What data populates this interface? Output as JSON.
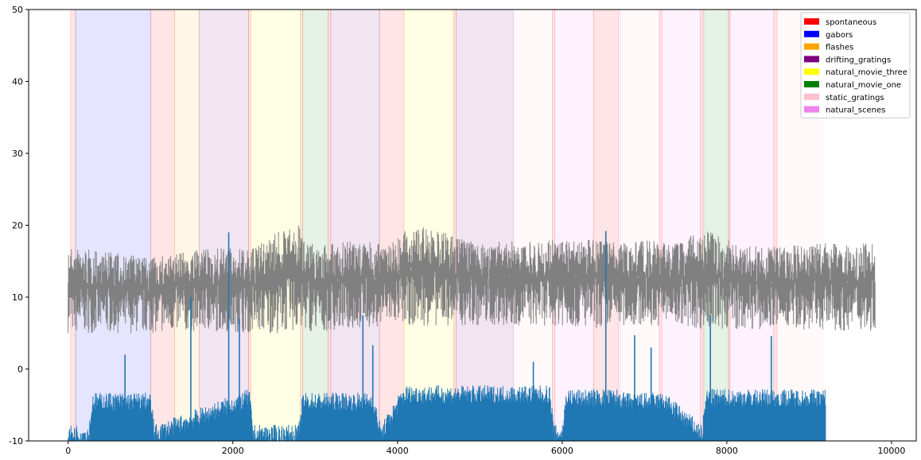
{
  "chart_data": {
    "type": "line",
    "xlim": [
      -480,
      10300
    ],
    "ylim": [
      -10,
      50
    ],
    "x_ticks": [
      0,
      2000,
      4000,
      6000,
      8000,
      10000
    ],
    "y_ticks": [
      -10,
      0,
      10,
      20,
      30,
      40,
      50
    ],
    "legend_position": "top-right",
    "legend": [
      {
        "label": "spontaneous",
        "color": "#ff0000"
      },
      {
        "label": "gabors",
        "color": "#0000ff"
      },
      {
        "label": "flashes",
        "color": "#ffa500"
      },
      {
        "label": "drifting_gratings",
        "color": "#800080"
      },
      {
        "label": "natural_movie_three",
        "color": "#ffff00"
      },
      {
        "label": "natural_movie_one",
        "color": "#008000"
      },
      {
        "label": "static_gratings",
        "color": "#ffc0cb"
      },
      {
        "label": "natural_scenes",
        "color": "#ee82ee"
      }
    ],
    "stimulus_epochs": [
      {
        "stimulus": "spontaneous",
        "start": 30,
        "end": 90
      },
      {
        "stimulus": "gabors",
        "start": 90,
        "end": 1000
      },
      {
        "stimulus": "spontaneous",
        "start": 1000,
        "end": 1295
      },
      {
        "stimulus": "flashes",
        "start": 1295,
        "end": 1590
      },
      {
        "stimulus": "drifting_gratings",
        "start": 1590,
        "end": 2190
      },
      {
        "stimulus": "spontaneous",
        "start": 2190,
        "end": 2220
      },
      {
        "stimulus": "natural_movie_three",
        "start": 2220,
        "end": 2820
      },
      {
        "stimulus": "spontaneous",
        "start": 2820,
        "end": 2850
      },
      {
        "stimulus": "natural_movie_one",
        "start": 2850,
        "end": 3160
      },
      {
        "stimulus": "spontaneous",
        "start": 3160,
        "end": 3190
      },
      {
        "stimulus": "drifting_gratings",
        "start": 3190,
        "end": 3780
      },
      {
        "stimulus": "spontaneous",
        "start": 3780,
        "end": 4080
      },
      {
        "stimulus": "natural_movie_three",
        "start": 4080,
        "end": 4680
      },
      {
        "stimulus": "spontaneous",
        "start": 4680,
        "end": 4710
      },
      {
        "stimulus": "drifting_gratings",
        "start": 4710,
        "end": 5410
      },
      {
        "stimulus": "static_gratings",
        "start": 5410,
        "end": 5880
      },
      {
        "stimulus": "spontaneous",
        "start": 5880,
        "end": 5910
      },
      {
        "stimulus": "natural_scenes",
        "start": 5910,
        "end": 6380
      },
      {
        "stimulus": "spontaneous",
        "start": 6380,
        "end": 6680
      },
      {
        "stimulus": "natural_scenes",
        "start": 6680,
        "end": 6710
      },
      {
        "stimulus": "static_gratings",
        "start": 6710,
        "end": 7180
      },
      {
        "stimulus": "spontaneous",
        "start": 7180,
        "end": 7210
      },
      {
        "stimulus": "natural_scenes",
        "start": 7210,
        "end": 7680
      },
      {
        "stimulus": "spontaneous",
        "start": 7680,
        "end": 7710
      },
      {
        "stimulus": "static_gratings",
        "start": 7710,
        "end": 7720
      },
      {
        "stimulus": "natural_movie_one",
        "start": 7720,
        "end": 8020
      },
      {
        "stimulus": "spontaneous",
        "start": 8020,
        "end": 8040
      },
      {
        "stimulus": "natural_scenes",
        "start": 8040,
        "end": 8570
      },
      {
        "stimulus": "spontaneous",
        "start": 8570,
        "end": 8610
      },
      {
        "stimulus": "static_gratings",
        "start": 8610,
        "end": 9170
      }
    ],
    "series": [
      {
        "color": "#808080",
        "x_range": [
          0,
          9800
        ],
        "envelope_x": [
          0,
          700,
          1000,
          1500,
          2000,
          2200,
          2500,
          2800,
          3000,
          3500,
          3800,
          4000,
          4200,
          4600,
          5000,
          5500,
          6000,
          6400,
          6700,
          7000,
          7400,
          7700,
          7900,
          8100,
          8500,
          9000,
          9500,
          9800
        ],
        "envelope_low": [
          5,
          5,
          5,
          5.2,
          5.2,
          5,
          5,
          5.2,
          5.2,
          5.5,
          6,
          6.2,
          6,
          6,
          6,
          6,
          6,
          5.5,
          6,
          6,
          6,
          5.5,
          5.5,
          5.5,
          5.5,
          5.5,
          5.3,
          5.3
        ],
        "envelope_high": [
          17,
          16,
          15.5,
          16.5,
          17,
          16.5,
          19,
          20,
          17,
          18,
          17.5,
          18.5,
          20,
          19,
          17.5,
          18,
          18,
          18,
          17.5,
          18,
          17.5,
          19.5,
          18.5,
          17.5,
          17,
          17.5,
          17.5,
          17.5
        ]
      },
      {
        "color": "#1f77b4",
        "x_range": [
          0,
          9200
        ],
        "baseline": -10,
        "active_x": [
          0,
          250,
          300,
          1000,
          1050,
          2200,
          2250,
          2800,
          2850,
          3700,
          3800,
          4050,
          4100,
          4700,
          4750,
          5850,
          5900,
          6000,
          6050,
          6700,
          6750,
          7200,
          7250,
          7700,
          7750,
          9200
        ],
        "active_level": [
          -9.5,
          -9.5,
          -5,
          -5,
          -9.5,
          -4.5,
          -9.5,
          -9.5,
          -5,
          -5,
          -9.5,
          -4.5,
          -4,
          -4,
          -4,
          -4,
          -9.5,
          -9.5,
          -4.5,
          -4.5,
          -5,
          -5,
          -5,
          -9.5,
          -4.5,
          -4.5
        ],
        "spikes": [
          {
            "x": 690,
            "y": 2
          },
          {
            "x": 1490,
            "y": 10
          },
          {
            "x": 1950,
            "y": 19
          },
          {
            "x": 2080,
            "y": 7
          },
          {
            "x": 3580,
            "y": 7.5
          },
          {
            "x": 3700,
            "y": 3.3
          },
          {
            "x": 5650,
            "y": 1
          },
          {
            "x": 6530,
            "y": 19.2
          },
          {
            "x": 6880,
            "y": 4.7
          },
          {
            "x": 7080,
            "y": 3
          },
          {
            "x": 7800,
            "y": 7.5
          },
          {
            "x": 8540,
            "y": 4.6
          }
        ]
      }
    ]
  }
}
